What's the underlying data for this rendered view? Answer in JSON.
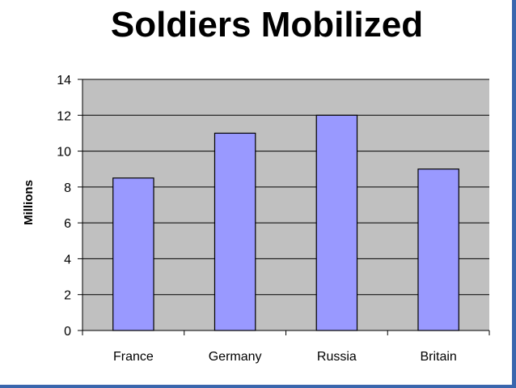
{
  "chart_data": {
    "type": "bar",
    "title": "Soldiers Mobilized",
    "xlabel": "",
    "ylabel": "Millions",
    "categories": [
      "France",
      "Germany",
      "Russia",
      "Britain"
    ],
    "values": [
      8.5,
      11,
      12,
      9
    ],
    "ylim": [
      0,
      14
    ],
    "yticks": [
      0,
      2,
      4,
      6,
      8,
      10,
      12,
      14
    ],
    "grid": true,
    "legend": "none"
  },
  "colors": {
    "plot_background": "#c0c0c0",
    "bar_fill": "#9999ff",
    "frame_accent": "#3a66ad"
  }
}
